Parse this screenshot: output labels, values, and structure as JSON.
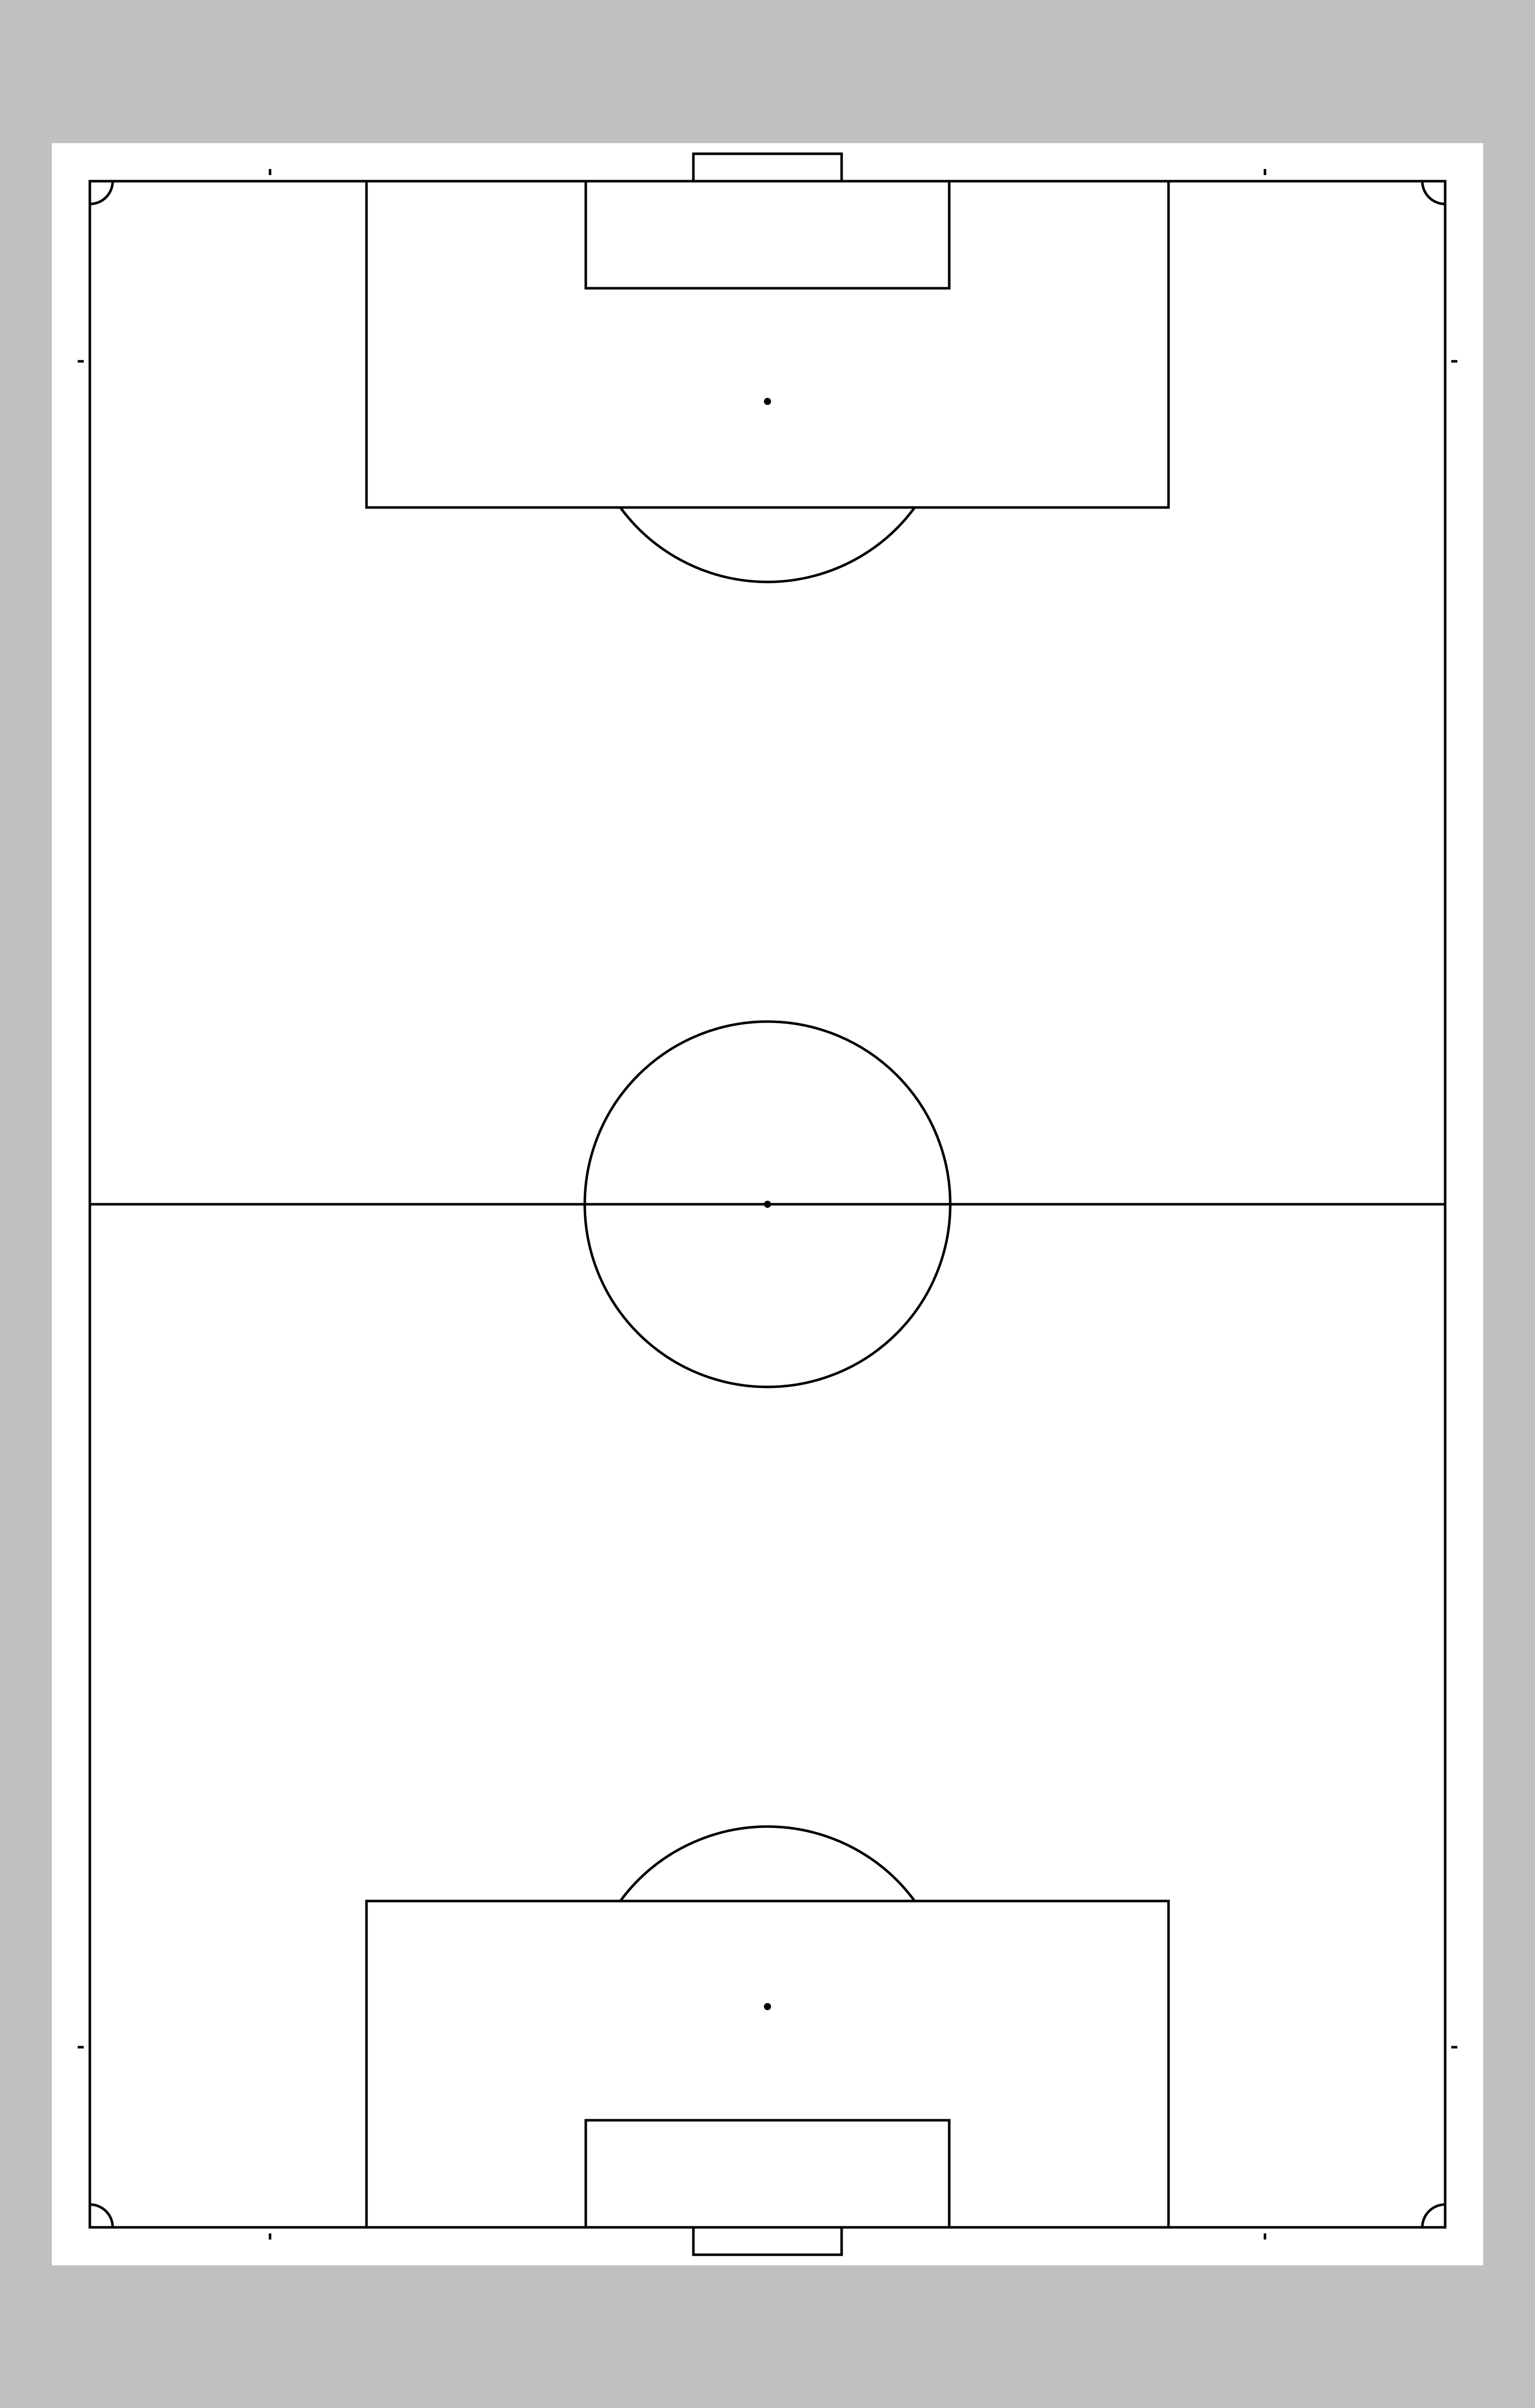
{
  "colors": {
    "background": "#c0c0c0",
    "paper": "#ffffff",
    "line": "#000000"
  },
  "diagram": {
    "type": "football-pitch",
    "orientation": "vertical"
  }
}
